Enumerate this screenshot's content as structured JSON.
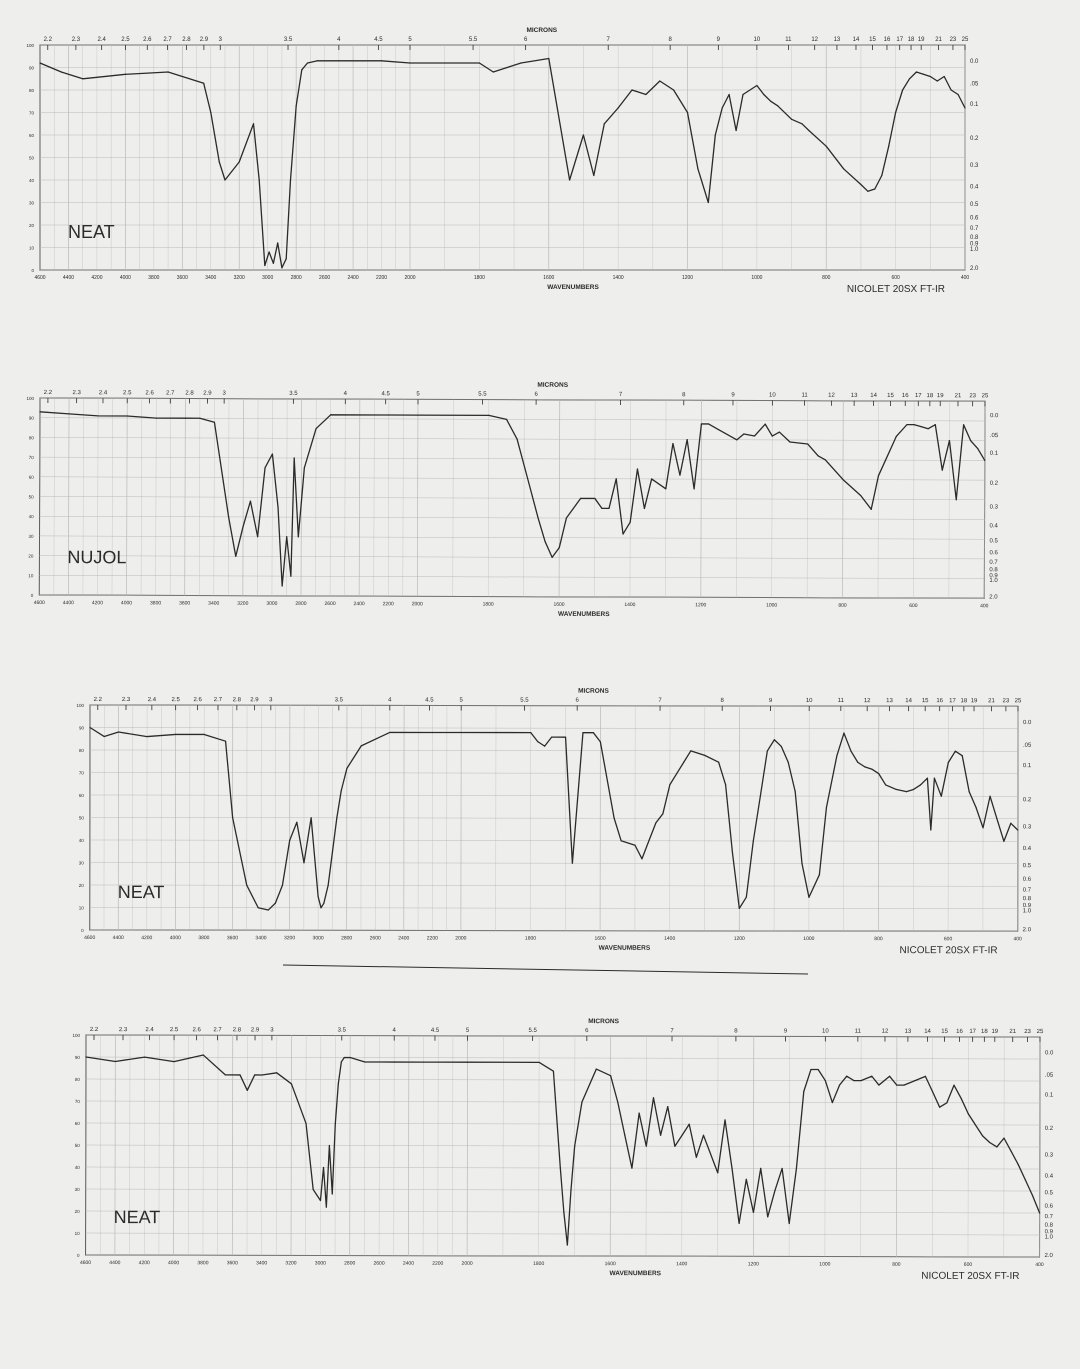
{
  "page": {
    "background": "#eeeeec",
    "ink": "#2b2b2b",
    "grid": "#b9b9b9"
  },
  "shared": {
    "micron_ticks": [
      "2.2",
      "2.3",
      "2.4",
      "2.5",
      "2.6",
      "2.7",
      "2.8",
      "2.9",
      "3",
      "3.5",
      "4",
      "4.5",
      "5",
      "5.5",
      "6",
      "7",
      "8",
      "9",
      "10",
      "11",
      "12",
      "13",
      "14",
      "15",
      "16",
      "17",
      "18",
      "19",
      "21",
      "23",
      "25"
    ],
    "wavenumber_ticks": [
      "4600",
      "4400",
      "4200",
      "4000",
      "3800",
      "3600",
      "3400",
      "3200",
      "3000",
      "2800",
      "2600",
      "2400",
      "2200",
      "2000",
      "1800",
      "1600",
      "1400",
      "1200",
      "1000",
      "800",
      "600",
      "400"
    ],
    "transmittance_ticks": [
      "100",
      "90",
      "80",
      "70",
      "60",
      "50",
      "40",
      "30",
      "20",
      "10",
      "0"
    ],
    "absorbance_ticks": [
      "0.0",
      ".05",
      "0.1",
      "0.2",
      "0.3",
      "0.4",
      "0.5",
      "0.6",
      "0.7",
      "0.8",
      "0.9",
      "1.0",
      "2.0"
    ]
  },
  "chart_data": [
    {
      "type": "line",
      "sample_label": "NEAT",
      "xlabel": "WAVENUMBERS",
      "top_axis_label": "MICRONS",
      "footer": "NICOLET 20SX FT-IR",
      "xlim": [
        4600,
        400
      ],
      "ylim": [
        0,
        100
      ],
      "grid": true,
      "series": [
        {
          "x": [
            4600,
            4450,
            4300,
            4000,
            3700,
            3450,
            3400,
            3340,
            3300,
            3200,
            3100,
            3060,
            3020,
            2990,
            2960,
            2930,
            2900,
            2870,
            2840,
            2800,
            2760,
            2720,
            2650,
            2500,
            2200,
            2000,
            1800,
            1760,
            1720,
            1680,
            1600,
            1540,
            1500,
            1470,
            1440,
            1400,
            1360,
            1320,
            1280,
            1240,
            1200,
            1170,
            1140,
            1120,
            1100,
            1080,
            1060,
            1040,
            1000,
            980,
            960,
            940,
            900,
            870,
            850,
            800,
            750,
            700,
            680,
            660,
            640,
            620,
            600,
            580,
            560,
            540,
            520,
            500,
            480,
            460,
            440,
            420,
            400
          ],
          "y": [
            92,
            88,
            85,
            87,
            88,
            83,
            70,
            48,
            40,
            48,
            65,
            40,
            2,
            8,
            3,
            12,
            1,
            5,
            40,
            73,
            89,
            92,
            93,
            93,
            93,
            92,
            92,
            88,
            90,
            92,
            94,
            40,
            60,
            42,
            65,
            72,
            80,
            78,
            84,
            80,
            70,
            45,
            30,
            60,
            72,
            78,
            62,
            78,
            82,
            78,
            75,
            73,
            67,
            65,
            62,
            55,
            45,
            38,
            35,
            36,
            42,
            55,
            70,
            80,
            85,
            88,
            87,
            86,
            84,
            86,
            80,
            78,
            72
          ]
        }
      ]
    },
    {
      "type": "line",
      "sample_label": "NUJOL",
      "xlabel": "WAVENUMBERS",
      "top_axis_label": "MICRONS",
      "footer": "",
      "xlim": [
        4600,
        400
      ],
      "ylim": [
        0,
        100
      ],
      "grid": true,
      "series": [
        {
          "x": [
            4600,
            4400,
            4200,
            4000,
            3800,
            3600,
            3500,
            3400,
            3300,
            3250,
            3200,
            3150,
            3100,
            3050,
            3000,
            2960,
            2930,
            2900,
            2870,
            2850,
            2820,
            2780,
            2700,
            2600,
            2200,
            2000,
            1800,
            1750,
            1720,
            1690,
            1660,
            1640,
            1620,
            1600,
            1580,
            1540,
            1500,
            1480,
            1460,
            1440,
            1420,
            1400,
            1380,
            1360,
            1340,
            1300,
            1280,
            1260,
            1240,
            1220,
            1200,
            1180,
            1150,
            1100,
            1080,
            1050,
            1020,
            1000,
            980,
            950,
            900,
            870,
            850,
            800,
            750,
            720,
            700,
            680,
            650,
            620,
            600,
            580,
            560,
            540,
            520,
            500,
            480,
            460,
            440,
            420,
            400
          ],
          "y": [
            93,
            92,
            91,
            91,
            90,
            90,
            90,
            88,
            40,
            20,
            35,
            48,
            30,
            65,
            72,
            45,
            5,
            30,
            10,
            70,
            30,
            65,
            85,
            92,
            92,
            92,
            92,
            90,
            80,
            60,
            40,
            28,
            20,
            25,
            40,
            50,
            50,
            45,
            45,
            60,
            32,
            38,
            65,
            45,
            60,
            55,
            78,
            62,
            80,
            55,
            88,
            88,
            85,
            80,
            83,
            82,
            88,
            82,
            84,
            79,
            78,
            72,
            70,
            60,
            52,
            45,
            62,
            70,
            82,
            88,
            88,
            87,
            86,
            88,
            65,
            80,
            50,
            88,
            80,
            76,
            70
          ]
        }
      ]
    },
    {
      "type": "line",
      "sample_label": "NEAT",
      "xlabel": "WAVENUMBERS",
      "top_axis_label": "MICRONS",
      "footer": "NICOLET 20SX FT-IR",
      "xlim": [
        4600,
        400
      ],
      "ylim": [
        0,
        100
      ],
      "grid": true,
      "series": [
        {
          "x": [
            4600,
            4500,
            4400,
            4200,
            4000,
            3800,
            3650,
            3600,
            3500,
            3420,
            3350,
            3300,
            3250,
            3200,
            3150,
            3100,
            3050,
            3000,
            2980,
            2960,
            2930,
            2900,
            2870,
            2840,
            2800,
            2700,
            2500,
            2200,
            2000,
            1800,
            1780,
            1760,
            1740,
            1720,
            1700,
            1680,
            1650,
            1620,
            1600,
            1560,
            1540,
            1500,
            1480,
            1460,
            1440,
            1420,
            1400,
            1380,
            1360,
            1340,
            1300,
            1260,
            1240,
            1220,
            1200,
            1180,
            1160,
            1140,
            1120,
            1100,
            1080,
            1060,
            1040,
            1020,
            1000,
            970,
            950,
            920,
            900,
            880,
            860,
            840,
            820,
            800,
            780,
            750,
            720,
            700,
            680,
            660,
            650,
            640,
            620,
            600,
            580,
            560,
            540,
            520,
            500,
            480,
            460,
            440,
            420,
            400
          ],
          "y": [
            90,
            86,
            88,
            86,
            87,
            87,
            84,
            50,
            20,
            10,
            9,
            12,
            20,
            40,
            48,
            30,
            50,
            15,
            10,
            12,
            20,
            35,
            50,
            62,
            72,
            82,
            88,
            88,
            88,
            88,
            84,
            82,
            86,
            86,
            86,
            30,
            88,
            88,
            84,
            50,
            40,
            38,
            32,
            40,
            48,
            52,
            65,
            70,
            75,
            80,
            78,
            75,
            65,
            35,
            10,
            15,
            40,
            60,
            80,
            85,
            82,
            75,
            62,
            30,
            15,
            25,
            55,
            78,
            88,
            80,
            75,
            73,
            72,
            70,
            65,
            63,
            62,
            63,
            65,
            68,
            45,
            68,
            60,
            75,
            80,
            78,
            62,
            55,
            46,
            60,
            50,
            40,
            48,
            45
          ]
        }
      ]
    },
    {
      "type": "line",
      "sample_label": "NEAT",
      "xlabel": "WAVENUMBERS",
      "top_axis_label": "MICRONS",
      "footer": "NICOLET 20SX FT-IR",
      "xlim": [
        4600,
        400
      ],
      "ylim": [
        0,
        100
      ],
      "grid": true,
      "series": [
        {
          "x": [
            4600,
            4400,
            4200,
            4000,
            3800,
            3650,
            3550,
            3500,
            3450,
            3400,
            3300,
            3200,
            3100,
            3050,
            3000,
            2980,
            2960,
            2940,
            2920,
            2900,
            2880,
            2860,
            2840,
            2800,
            2700,
            2500,
            2300,
            2200,
            2000,
            1800,
            1760,
            1740,
            1730,
            1720,
            1710,
            1700,
            1680,
            1640,
            1600,
            1580,
            1560,
            1540,
            1520,
            1500,
            1480,
            1460,
            1440,
            1420,
            1400,
            1380,
            1360,
            1340,
            1300,
            1280,
            1260,
            1240,
            1220,
            1200,
            1180,
            1160,
            1140,
            1120,
            1100,
            1080,
            1060,
            1040,
            1020,
            1000,
            980,
            960,
            940,
            920,
            900,
            870,
            850,
            820,
            800,
            780,
            750,
            720,
            700,
            680,
            660,
            640,
            620,
            600,
            580,
            560,
            540,
            520,
            500,
            480,
            460,
            440,
            420,
            400
          ],
          "y": [
            90,
            88,
            90,
            88,
            91,
            82,
            82,
            75,
            82,
            82,
            83,
            78,
            60,
            30,
            25,
            40,
            22,
            50,
            28,
            60,
            78,
            88,
            90,
            90,
            88,
            88,
            88,
            88,
            88,
            88,
            84,
            40,
            20,
            5,
            30,
            50,
            70,
            85,
            82,
            70,
            55,
            40,
            65,
            50,
            72,
            55,
            68,
            50,
            55,
            60,
            45,
            55,
            38,
            62,
            40,
            15,
            35,
            20,
            40,
            18,
            30,
            40,
            15,
            40,
            75,
            85,
            85,
            80,
            70,
            78,
            82,
            80,
            80,
            82,
            78,
            82,
            78,
            78,
            80,
            82,
            75,
            68,
            70,
            78,
            72,
            65,
            60,
            55,
            52,
            50,
            54,
            48,
            42,
            35,
            28,
            20
          ]
        }
      ]
    }
  ]
}
